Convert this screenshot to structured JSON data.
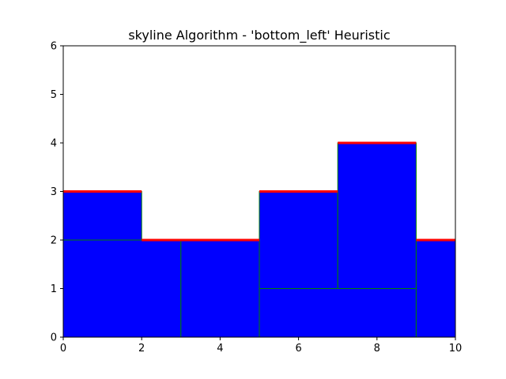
{
  "chart_data": {
    "type": "rectangle-packing",
    "title": "skyline Algorithm - 'bottom_left' Heuristic",
    "xlabel": "",
    "ylabel": "",
    "xlim": [
      0,
      10
    ],
    "ylim": [
      0,
      6
    ],
    "xticks": [
      0,
      2,
      4,
      6,
      8,
      10
    ],
    "yticks": [
      0,
      1,
      2,
      3,
      4,
      5,
      6
    ],
    "grid": false,
    "rectangles": [
      {
        "x": 0,
        "y": 0,
        "w": 3,
        "h": 2
      },
      {
        "x": 0,
        "y": 2,
        "w": 2,
        "h": 1
      },
      {
        "x": 3,
        "y": 0,
        "w": 2,
        "h": 2
      },
      {
        "x": 5,
        "y": 0,
        "w": 4,
        "h": 1
      },
      {
        "x": 5,
        "y": 1,
        "w": 2,
        "h": 2
      },
      {
        "x": 7,
        "y": 1,
        "w": 2,
        "h": 3
      },
      {
        "x": 9,
        "y": 0,
        "w": 1,
        "h": 2
      }
    ],
    "skyline": [
      {
        "x0": 0,
        "x1": 2,
        "y": 3
      },
      {
        "x0": 2,
        "x1": 5,
        "y": 2
      },
      {
        "x0": 5,
        "x1": 7,
        "y": 3
      },
      {
        "x0": 7,
        "x1": 9,
        "y": 4
      },
      {
        "x0": 9,
        "x1": 10,
        "y": 2
      }
    ],
    "colors": {
      "rect_fill": "#0000ff",
      "rect_edge": "#008000",
      "skyline": "#ff0000"
    }
  }
}
